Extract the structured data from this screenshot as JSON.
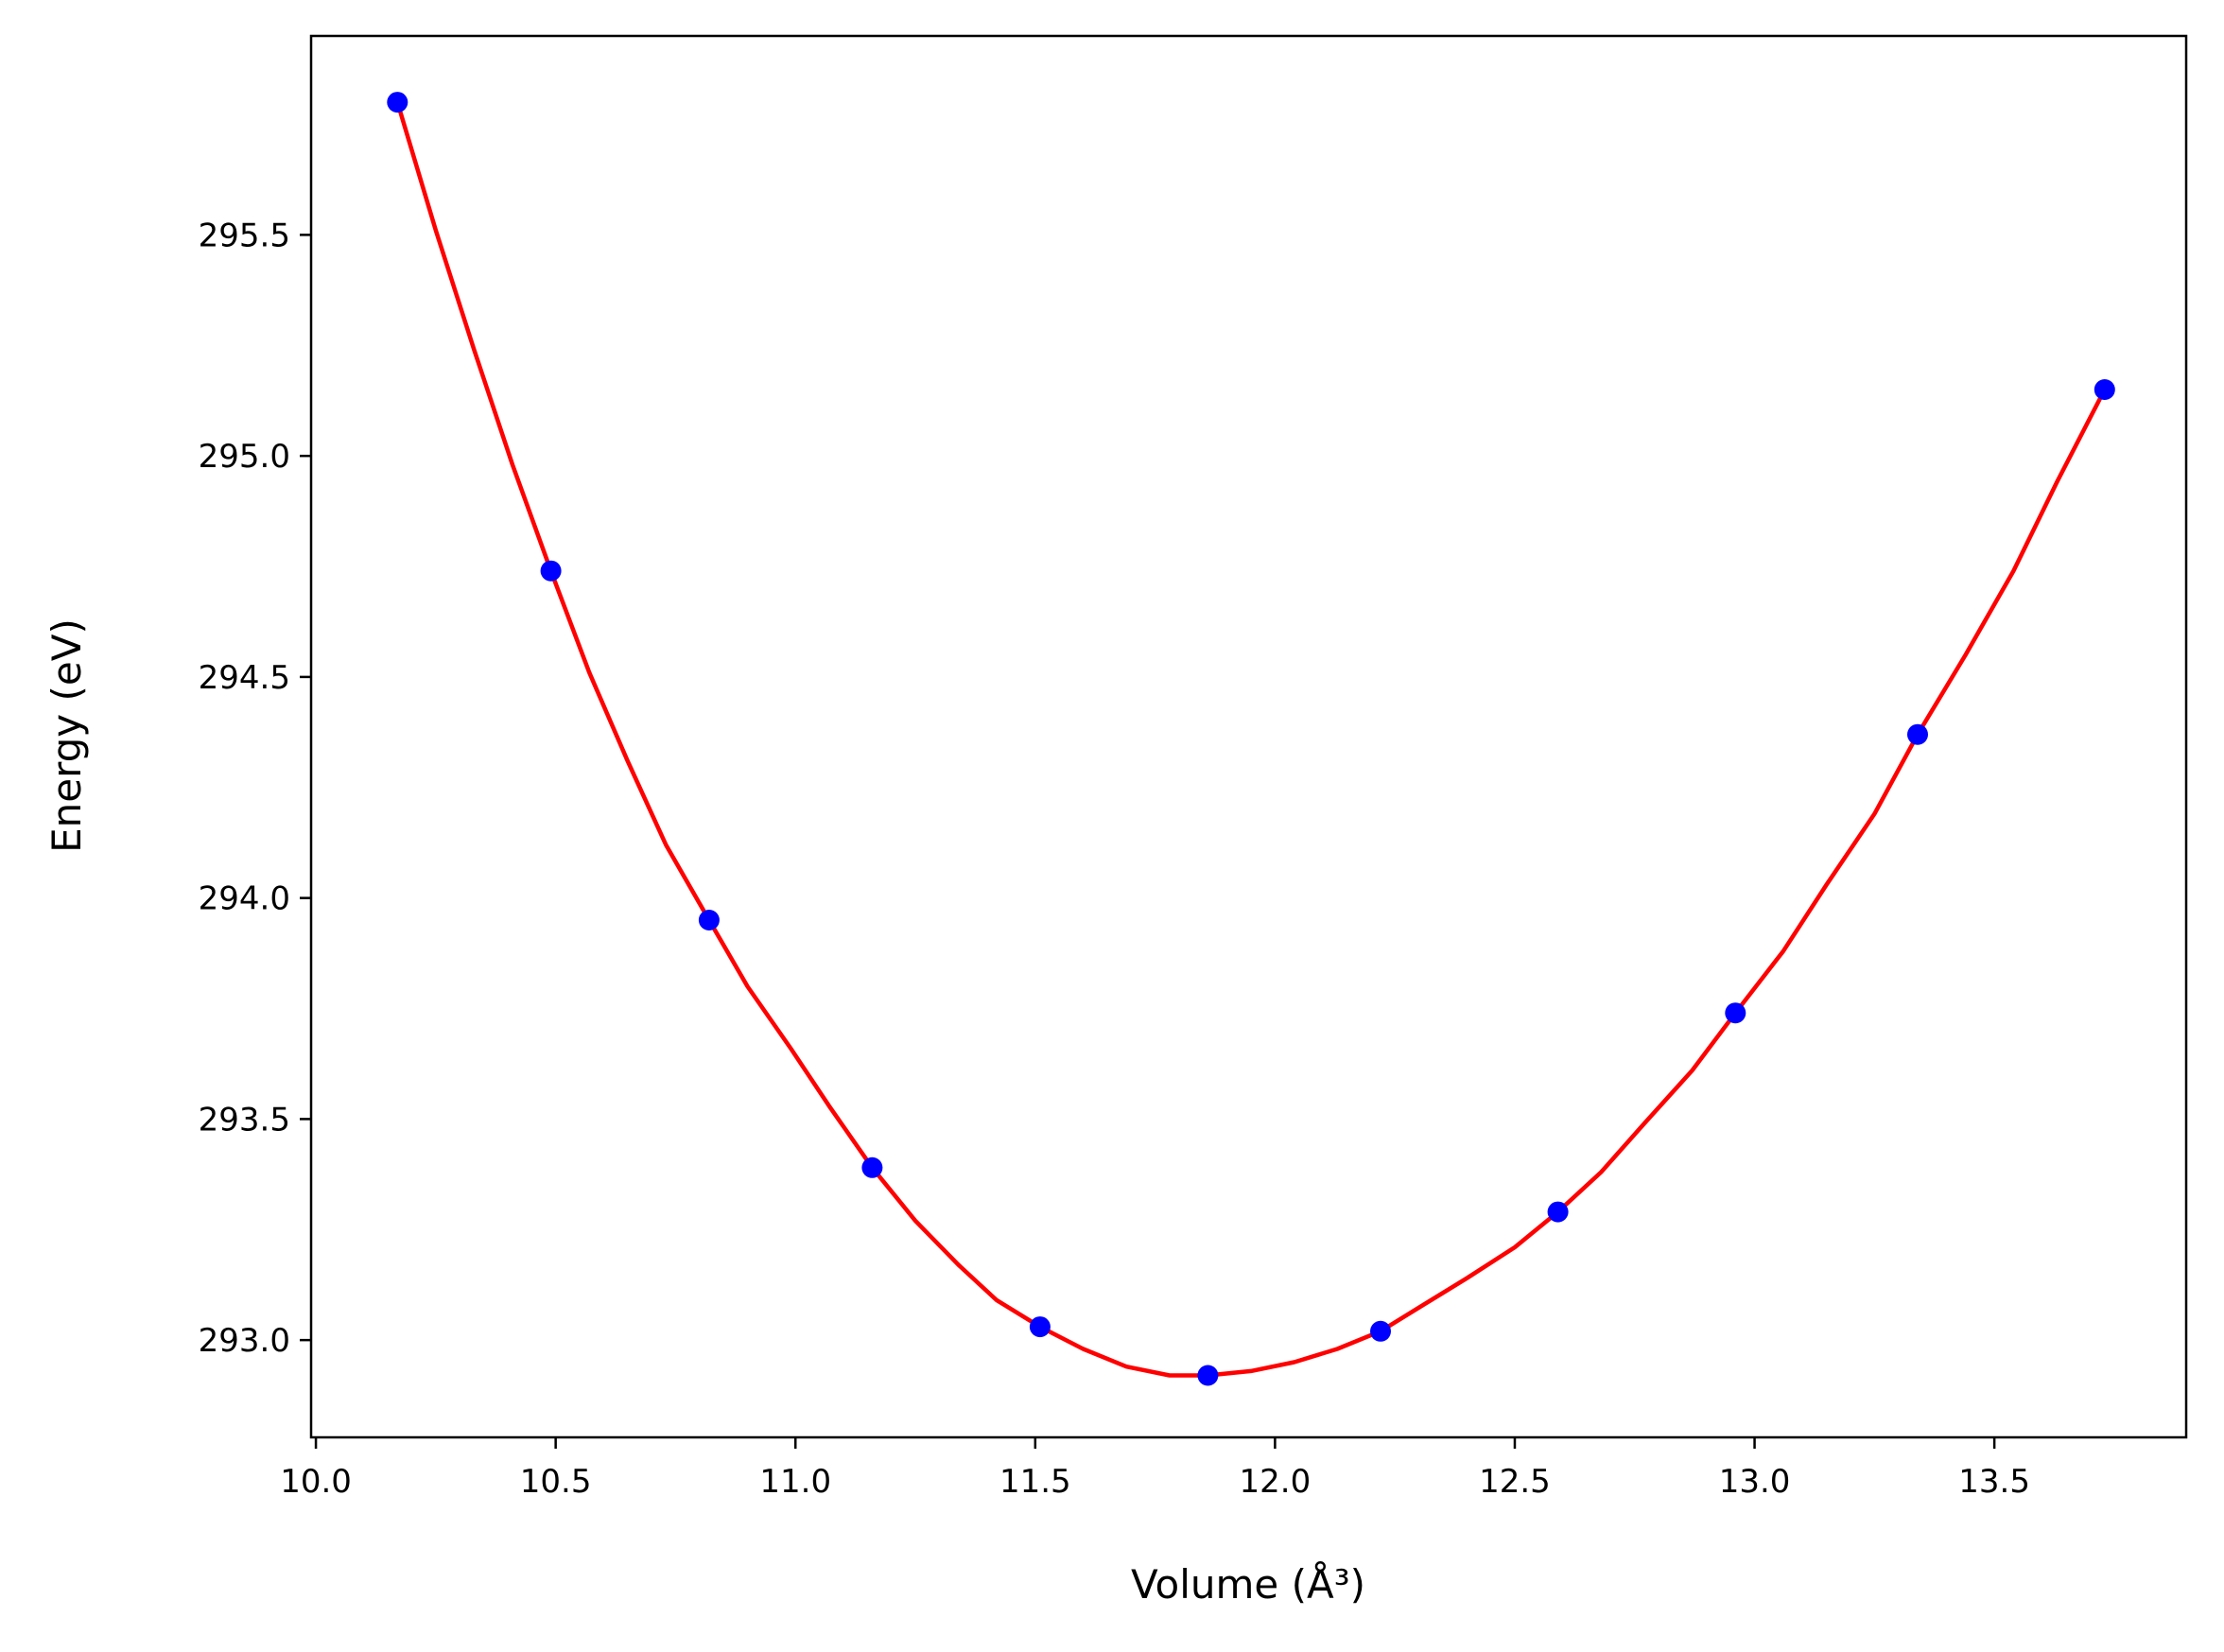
{
  "chart_data": {
    "type": "scatter",
    "title": "",
    "xlabel": "Volume ",
    "xlabel_unit": "(Å³)",
    "ylabel": "Energy ",
    "ylabel_unit": "(eV)",
    "xlim": [
      9.99,
      13.9
    ],
    "ylim": [
      292.78,
      295.95
    ],
    "xticks": [
      10.0,
      10.5,
      11.0,
      11.5,
      12.0,
      12.5,
      13.0,
      13.5
    ],
    "xtick_labels": [
      "10.0",
      "10.5",
      "11.0",
      "11.5",
      "12.0",
      "12.5",
      "13.0",
      "13.5"
    ],
    "yticks": [
      293.0,
      293.5,
      294.0,
      294.5,
      295.0,
      295.5
    ],
    "ytick_labels": [
      "293.0",
      "293.5",
      "294.0",
      "294.5",
      "295.0",
      "295.5"
    ],
    "grid": false,
    "series": [
      {
        "kind": "points",
        "color": "#0000ff",
        "x": [
          10.17,
          10.49,
          10.82,
          11.16,
          11.51,
          11.86,
          12.22,
          12.59,
          12.96,
          13.34,
          13.73
        ],
        "y": [
          295.8,
          294.74,
          293.95,
          293.39,
          293.03,
          292.92,
          293.02,
          293.29,
          293.74,
          294.37,
          295.15
        ]
      },
      {
        "kind": "fit-curve",
        "color": "#ff0000",
        "x": [
          10.17,
          10.25,
          10.33,
          10.41,
          10.49,
          10.57,
          10.65,
          10.73,
          10.82,
          10.9,
          10.99,
          11.07,
          11.16,
          11.25,
          11.34,
          11.42,
          11.51,
          11.6,
          11.69,
          11.78,
          11.86,
          11.95,
          12.04,
          12.13,
          12.22,
          12.31,
          12.4,
          12.5,
          12.59,
          12.68,
          12.77,
          12.87,
          12.96,
          13.06,
          13.15,
          13.25,
          13.34,
          13.44,
          13.54,
          13.63,
          13.73
        ],
        "y": [
          295.8,
          295.51,
          295.24,
          294.98,
          294.74,
          294.51,
          294.31,
          294.12,
          293.95,
          293.8,
          293.66,
          293.53,
          293.39,
          293.27,
          293.17,
          293.09,
          293.03,
          292.98,
          292.94,
          292.92,
          292.92,
          292.93,
          292.95,
          292.98,
          293.02,
          293.08,
          293.14,
          293.21,
          293.29,
          293.38,
          293.49,
          293.61,
          293.74,
          293.88,
          294.03,
          294.19,
          294.37,
          294.55,
          294.74,
          294.94,
          295.15
        ]
      }
    ]
  }
}
